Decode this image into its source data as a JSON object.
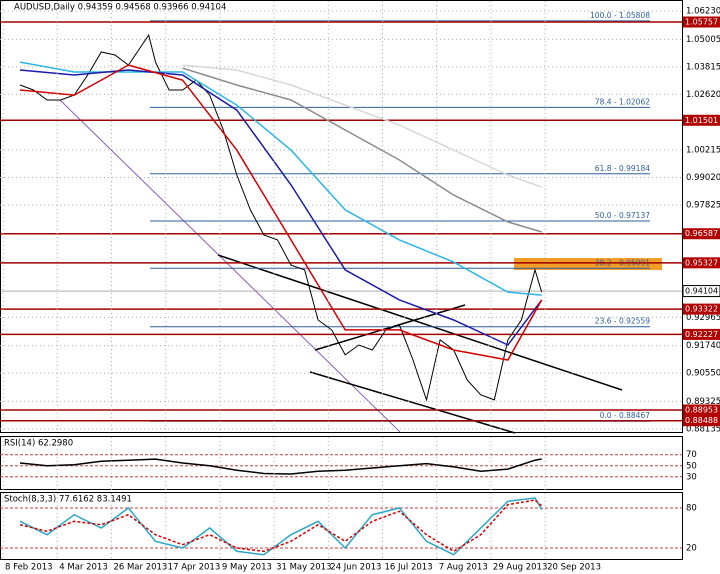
{
  "chart_data": [
    {
      "type": "line",
      "title": "AUDUSD,Daily  0.94359 0.94568 0.93966 0.94104",
      "xlim": [
        -5.9,
        195.4
      ],
      "ylim": [
        0.88,
        1.0671
      ],
      "grid": true,
      "yticks": [
        {
          "value": 1.0623,
          "label": "1.06230"
        },
        {
          "value": 1.05005,
          "label": "1.05005"
        },
        {
          "value": 1.03815,
          "label": "1.03815"
        },
        {
          "value": 1.0262,
          "label": "1.02620"
        },
        {
          "value": 1.00215,
          "label": "1.00215"
        },
        {
          "value": 0.9902,
          "label": "0.99020"
        },
        {
          "value": 0.97825,
          "label": "0.97825"
        },
        0.92965,
        {
          "value": 0.9174,
          "label": "0.91740"
        },
        {
          "value": 0.9055,
          "label": "0.90550"
        },
        0.89325,
        0.88135
      ],
      "levels": [
        1.05757,
        1.01501,
        0.96587,
        0.95327,
        0.93322,
        0.92227,
        0.88953,
        0.88488
      ],
      "current_price": 0.94104,
      "fib_levels": [
        {
          "value": 1.05808,
          "label": "100.0 - 1.05808"
        },
        {
          "value": 1.02062,
          "label": "78.4 - 1.02062"
        },
        {
          "value": 0.99184,
          "label": "61.8 - 0.99184"
        },
        {
          "value": 0.97137,
          "label": "50.0 - 0.97137"
        },
        {
          "value": 0.95091,
          "label": "38.2 - 0.95091"
        },
        {
          "value": 0.92559,
          "label": "23.6 - 0.92559"
        },
        {
          "value": 0.88467,
          "label": "0.0 - 0.88467"
        }
      ],
      "series": [
        {
          "color": "#000000",
          "x": [
            0,
            4,
            8,
            12,
            16,
            20,
            24,
            28,
            32,
            36,
            38,
            40,
            44,
            48,
            52,
            56,
            60,
            64,
            68,
            72,
            76,
            80,
            84,
            88,
            92,
            96,
            100,
            104,
            108,
            112,
            116,
            120,
            124,
            128,
            132,
            136,
            140,
            144,
            148,
            152,
            154
          ],
          "values": [
            1.0303,
            1.0281,
            1.0238,
            1.0238,
            1.0259,
            1.0346,
            1.0446,
            1.0433,
            1.0389,
            1.0476,
            1.0519,
            1.0402,
            1.0281,
            1.0281,
            1.0324,
            1.0259,
            1.0108,
            0.9913,
            0.9762,
            0.9653,
            0.9632,
            0.9523,
            0.9502,
            0.9285,
            0.9242,
            0.9134,
            0.9177,
            0.9155,
            0.9242,
            0.9264,
            0.9112,
            0.8939,
            0.9199,
            0.9155,
            0.9025,
            0.8961,
            0.8939,
            0.9199,
            0.9285,
            0.9502,
            0.9406
          ]
        },
        {
          "color": "#d8d8d8",
          "x": [
            48,
            64,
            80,
            96,
            112,
            128,
            144,
            154
          ],
          "values": [
            1.0389,
            1.0368,
            1.0303,
            1.0216,
            1.0129,
            1.0021,
            0.9913,
            0.9861
          ]
        },
        {
          "color": "#8c8c8c",
          "x": [
            48,
            64,
            80,
            96,
            112,
            128,
            144,
            154
          ],
          "values": [
            1.0376,
            1.0303,
            1.0238,
            1.0108,
            0.9978,
            0.9826,
            0.971,
            0.9666
          ]
        },
        {
          "color": "#2cb5e8",
          "x": [
            0,
            16,
            32,
            48,
            64,
            80,
            96,
            112,
            128,
            144,
            154
          ],
          "values": [
            1.0402,
            1.0359,
            1.0359,
            1.0359,
            1.0216,
            1.0021,
            0.9762,
            0.9632,
            0.9536,
            0.9406,
            0.9393
          ]
        },
        {
          "color": "#1c1ca8",
          "x": [
            0,
            16,
            32,
            48,
            64,
            80,
            96,
            112,
            128,
            144,
            154
          ],
          "values": [
            1.0368,
            1.0346,
            1.0368,
            1.0346,
            1.0194,
            0.987,
            0.9502,
            0.9372,
            0.9285,
            0.9177,
            0.9372
          ]
        },
        {
          "color": "#d40000",
          "x": [
            0,
            16,
            32,
            48,
            64,
            80,
            96,
            112,
            128,
            144,
            154
          ],
          "values": [
            1.0281,
            1.0259,
            1.0389,
            1.0324,
            1.0021,
            0.9632,
            0.9242,
            0.9242,
            0.9155,
            0.9112,
            0.9372
          ]
        }
      ]
    },
    {
      "type": "line",
      "title": "RSI(14) 62.2980",
      "xlim": [
        -5.9,
        195.4
      ],
      "ylim": [
        6,
        104
      ],
      "yticks": [
        70,
        50,
        30
      ],
      "series": [
        {
          "color": "#000000",
          "x": [
            0,
            8,
            16,
            24,
            32,
            40,
            48,
            56,
            64,
            72,
            80,
            88,
            96,
            104,
            112,
            120,
            128,
            136,
            144,
            152,
            154
          ],
          "values": [
            55,
            50,
            52,
            58,
            60,
            62,
            55,
            50,
            42,
            36,
            35,
            40,
            42,
            46,
            50,
            54,
            48,
            40,
            44,
            60,
            62.298
          ]
        }
      ]
    },
    {
      "type": "line",
      "title": "Stoch(8,3,3) 77.6162 83.1491",
      "xlim": [
        -5.9,
        195.4
      ],
      "ylim": [
        2,
        104
      ],
      "yticks": [
        80,
        20
      ],
      "xticks": [
        {
          "value": -5,
          "label": "8 Feb 2013"
        },
        {
          "value": 11,
          "label": "4 Mar 2013"
        },
        {
          "value": 27,
          "label": "26 Mar 2013"
        },
        {
          "value": 43,
          "label": "17 Apr 2013"
        },
        {
          "value": 59,
          "label": "9 May 2013"
        },
        {
          "value": 75,
          "label": "31 May 2013"
        },
        {
          "value": 91,
          "label": "24 Jun 2013"
        },
        {
          "value": 107,
          "label": "16 Jul 2013"
        },
        {
          "value": 123,
          "label": "7 Aug 2013"
        },
        {
          "value": 139,
          "label": "29 Aug 2013"
        },
        {
          "value": 155,
          "label": "20 Sep 2013"
        }
      ],
      "series": [
        {
          "color": "#2aa6c8",
          "x": [
            0,
            8,
            16,
            24,
            32,
            40,
            48,
            56,
            64,
            72,
            80,
            88,
            96,
            104,
            112,
            120,
            128,
            136,
            144,
            152,
            154
          ],
          "values": [
            60,
            40,
            70,
            50,
            80,
            30,
            20,
            50,
            15,
            10,
            40,
            60,
            20,
            70,
            80,
            30,
            10,
            50,
            90,
            95,
            77.6162
          ]
        },
        {
          "color": "#d40000",
          "dash": true,
          "x": [
            0,
            8,
            16,
            24,
            32,
            40,
            48,
            56,
            64,
            72,
            80,
            88,
            96,
            104,
            112,
            120,
            128,
            136,
            144,
            152,
            154
          ],
          "values": [
            55,
            45,
            60,
            55,
            70,
            40,
            25,
            40,
            20,
            15,
            30,
            55,
            30,
            60,
            75,
            40,
            15,
            40,
            85,
            92,
            83.1491
          ]
        }
      ]
    }
  ]
}
